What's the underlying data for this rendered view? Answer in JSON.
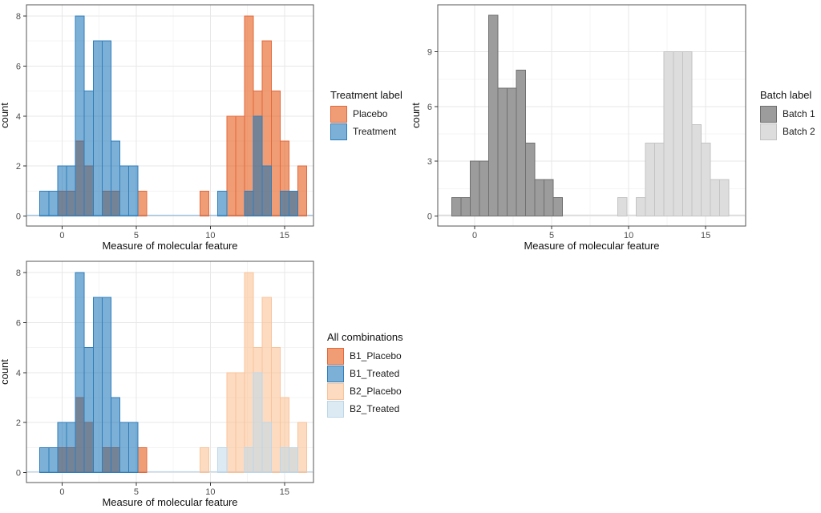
{
  "figure": {
    "background": "#ffffff",
    "panel_border": "#565656",
    "grid_major": "#e7e7e7",
    "grid_minor": "#f4f4f4",
    "tick_color": "#333333",
    "tick_label_color": "#4d4d4d"
  },
  "chart_data": [
    {
      "id": "by_treatment",
      "type": "histogram",
      "title": "",
      "xlabel": "Measure of molecular feature",
      "ylabel": "count",
      "legend_title": "Treatment label",
      "legend_position": "right",
      "grid": true,
      "bin_width": 0.6,
      "x_ticks": [
        0,
        5,
        10,
        15
      ],
      "y_ticks": [
        0,
        2,
        4,
        6,
        8
      ],
      "xlim": [
        -2.4,
        16.95
      ],
      "ylim": [
        -0.4,
        8.45
      ],
      "zero_line": "rgba(46,126,188,0.45)",
      "series": [
        {
          "name": "Placebo",
          "fill": "rgba(230,90,23,0.6)",
          "stroke": "#E3683B",
          "bins": [
            [
              0,
              1
            ],
            [
              0.6,
              1
            ],
            [
              1.2,
              3
            ],
            [
              1.8,
              2
            ],
            [
              3,
              1
            ],
            [
              3.6,
              1
            ],
            [
              5.4,
              1
            ],
            [
              9.6,
              1
            ],
            [
              11.4,
              4
            ],
            [
              12,
              4
            ],
            [
              12.6,
              8
            ],
            [
              13.2,
              5
            ],
            [
              13.8,
              7
            ],
            [
              14.4,
              5
            ],
            [
              15,
              3
            ],
            [
              15.6,
              1
            ],
            [
              16.2,
              2
            ]
          ]
        },
        {
          "name": "Treatment",
          "fill": "rgba(16,111,180,0.55)",
          "stroke": "#2E7EBC",
          "bins": [
            [
              -1.2,
              1
            ],
            [
              -0.6,
              1
            ],
            [
              0,
              2
            ],
            [
              0.6,
              2
            ],
            [
              1.2,
              8
            ],
            [
              1.8,
              5
            ],
            [
              2.4,
              7
            ],
            [
              3,
              7
            ],
            [
              3.6,
              3
            ],
            [
              4.2,
              2
            ],
            [
              4.8,
              2
            ],
            [
              10.8,
              1
            ],
            [
              12.6,
              1
            ],
            [
              13.2,
              4
            ],
            [
              13.8,
              2
            ],
            [
              15,
              1
            ],
            [
              15.6,
              1
            ]
          ]
        }
      ]
    },
    {
      "id": "by_batch",
      "type": "histogram",
      "title": "",
      "xlabel": "Measure of molecular feature",
      "ylabel": "count",
      "legend_title": "Batch label",
      "legend_position": "right",
      "grid": true,
      "bin_width": 0.6,
      "x_ticks": [
        0,
        5,
        10,
        15
      ],
      "y_ticks": [
        0,
        3,
        6,
        9
      ],
      "xlim": [
        -2.4,
        17.6
      ],
      "ylim": [
        -0.55,
        11.58
      ],
      "zero_line": "#dcdcdc",
      "series": [
        {
          "name": "Batch 1",
          "fill": "#9C9C9C",
          "stroke": "#6F6F6F",
          "bins": [
            [
              -1.2,
              1
            ],
            [
              -0.6,
              1
            ],
            [
              0,
              3
            ],
            [
              0.6,
              3
            ],
            [
              1.2,
              11
            ],
            [
              1.8,
              7
            ],
            [
              2.4,
              7
            ],
            [
              3,
              8
            ],
            [
              3.6,
              4
            ],
            [
              4.2,
              2
            ],
            [
              4.8,
              2
            ],
            [
              5.4,
              1
            ]
          ]
        },
        {
          "name": "Batch 2",
          "fill": "#DDDDDD",
          "stroke": "#C3C3C3",
          "bins": [
            [
              9.6,
              1
            ],
            [
              10.8,
              1
            ],
            [
              11.4,
              4
            ],
            [
              12,
              4
            ],
            [
              12.6,
              9
            ],
            [
              13.2,
              9
            ],
            [
              13.8,
              9
            ],
            [
              14.4,
              5
            ],
            [
              15,
              4
            ],
            [
              15.6,
              2
            ],
            [
              16.2,
              2
            ]
          ]
        }
      ]
    },
    {
      "id": "by_combination",
      "type": "histogram",
      "title": "",
      "xlabel": "Measure of molecular feature",
      "ylabel": "count",
      "legend_title": "All combinations",
      "legend_position": "right",
      "grid": true,
      "bin_width": 0.6,
      "x_ticks": [
        0,
        5,
        10,
        15
      ],
      "y_ticks": [
        0,
        2,
        4,
        6,
        8
      ],
      "xlim": [
        -2.4,
        16.95
      ],
      "ylim": [
        -0.4,
        8.45
      ],
      "zero_line": "rgba(189,215,232,0.9)",
      "series": [
        {
          "name": "B1_Placebo",
          "fill": "rgba(230,90,23,0.6)",
          "stroke": "#E3683B",
          "bins": [
            [
              0,
              1
            ],
            [
              0.6,
              1
            ],
            [
              1.2,
              3
            ],
            [
              1.8,
              2
            ],
            [
              3,
              1
            ],
            [
              3.6,
              1
            ],
            [
              5.4,
              1
            ]
          ]
        },
        {
          "name": "B1_Treated",
          "fill": "rgba(16,111,180,0.55)",
          "stroke": "#2E7EBC",
          "bins": [
            [
              -1.2,
              1
            ],
            [
              -0.6,
              1
            ],
            [
              0,
              2
            ],
            [
              0.6,
              2
            ],
            [
              1.2,
              8
            ],
            [
              1.8,
              5
            ],
            [
              2.4,
              7
            ],
            [
              3,
              7
            ],
            [
              3.6,
              3
            ],
            [
              4.2,
              2
            ],
            [
              4.8,
              2
            ]
          ]
        },
        {
          "name": "B2_Placebo",
          "fill": "rgba(251,189,140,0.55)",
          "stroke": "#F9C39B",
          "bins": [
            [
              9.6,
              1
            ],
            [
              11.4,
              4
            ],
            [
              12,
              4
            ],
            [
              12.6,
              8
            ],
            [
              13.2,
              5
            ],
            [
              13.8,
              7
            ],
            [
              14.4,
              5
            ],
            [
              15,
              3
            ],
            [
              15.6,
              1
            ],
            [
              16.2,
              2
            ]
          ]
        },
        {
          "name": "B2_Treated",
          "fill": "rgba(191,216,233,0.55)",
          "stroke": "#BDD7E8",
          "bins": [
            [
              10.8,
              1
            ],
            [
              12.6,
              1
            ],
            [
              13.2,
              4
            ],
            [
              13.8,
              2
            ],
            [
              15,
              1
            ],
            [
              15.6,
              1
            ]
          ]
        }
      ]
    }
  ]
}
